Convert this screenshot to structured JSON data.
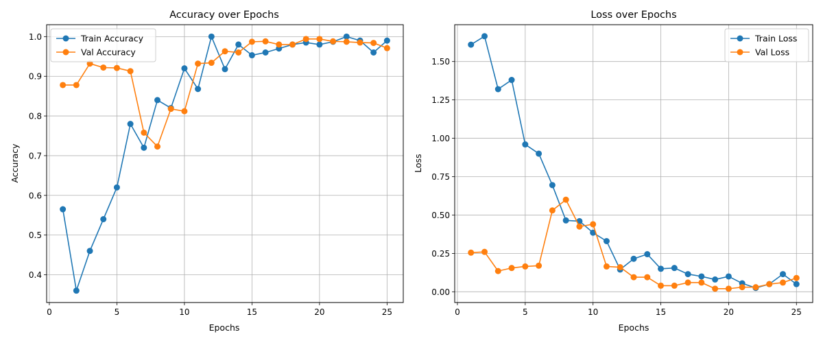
{
  "chart_data": [
    {
      "type": "line",
      "title": "Accuracy over Epochs",
      "xlabel": "Epochs",
      "ylabel": "Accuracy",
      "xlim": [
        -0.2,
        26.2
      ],
      "ylim": [
        0.33,
        1.03
      ],
      "xticks": [
        0,
        5,
        10,
        15,
        20,
        25
      ],
      "yticks": [
        0.4,
        0.5,
        0.6,
        0.7,
        0.8,
        0.9,
        1.0
      ],
      "ytick_labels": [
        "0.4",
        "0.5",
        "0.6",
        "0.7",
        "0.8",
        "0.9",
        "1.0"
      ],
      "grid": true,
      "legend_position": "top-left",
      "x": [
        1,
        2,
        3,
        4,
        5,
        6,
        7,
        8,
        9,
        10,
        11,
        12,
        13,
        14,
        15,
        16,
        17,
        18,
        19,
        20,
        21,
        22,
        23,
        24,
        25
      ],
      "series": [
        {
          "name": "Train Accuracy",
          "color": "#1f77b4",
          "values": [
            0.565,
            0.36,
            0.46,
            0.54,
            0.62,
            0.78,
            0.72,
            0.84,
            0.82,
            0.92,
            0.868,
            1.0,
            0.918,
            0.98,
            0.953,
            0.96,
            0.97,
            0.98,
            0.985,
            0.98,
            0.987,
            1.0,
            0.99,
            0.96,
            0.99
          ]
        },
        {
          "name": "Val Accuracy",
          "color": "#ff7f0e",
          "values": [
            0.878,
            0.878,
            0.932,
            0.922,
            0.921,
            0.913,
            0.758,
            0.723,
            0.818,
            0.812,
            0.932,
            0.934,
            0.963,
            0.96,
            0.987,
            0.988,
            0.98,
            0.98,
            0.994,
            0.994,
            0.988,
            0.987,
            0.985,
            0.984,
            0.971
          ]
        }
      ]
    },
    {
      "type": "line",
      "title": "Loss over Epochs",
      "xlabel": "Epochs",
      "ylabel": "Loss",
      "xlim": [
        -0.2,
        26.2
      ],
      "ylim": [
        -0.07,
        1.74
      ],
      "xticks": [
        0,
        5,
        10,
        15,
        20,
        25
      ],
      "yticks": [
        0.0,
        0.25,
        0.5,
        0.75,
        1.0,
        1.25,
        1.5
      ],
      "ytick_labels": [
        "0.00",
        "0.25",
        "0.50",
        "0.75",
        "1.00",
        "1.25",
        "1.50"
      ],
      "grid": true,
      "legend_position": "top-right",
      "x": [
        1,
        2,
        3,
        4,
        5,
        6,
        7,
        8,
        9,
        10,
        11,
        12,
        13,
        14,
        15,
        16,
        17,
        18,
        19,
        20,
        21,
        22,
        23,
        24,
        25
      ],
      "series": [
        {
          "name": "Train Loss",
          "color": "#1f77b4",
          "values": [
            1.61,
            1.665,
            1.32,
            1.38,
            0.96,
            0.9,
            0.695,
            0.465,
            0.46,
            0.385,
            0.33,
            0.145,
            0.215,
            0.245,
            0.15,
            0.155,
            0.115,
            0.1,
            0.08,
            0.1,
            0.055,
            0.025,
            0.05,
            0.115,
            0.05
          ]
        },
        {
          "name": "Val Loss",
          "color": "#ff7f0e",
          "values": [
            0.255,
            0.26,
            0.135,
            0.155,
            0.165,
            0.17,
            0.53,
            0.6,
            0.425,
            0.44,
            0.165,
            0.16,
            0.095,
            0.095,
            0.04,
            0.04,
            0.06,
            0.06,
            0.02,
            0.02,
            0.03,
            0.03,
            0.05,
            0.06,
            0.09
          ]
        }
      ]
    }
  ]
}
